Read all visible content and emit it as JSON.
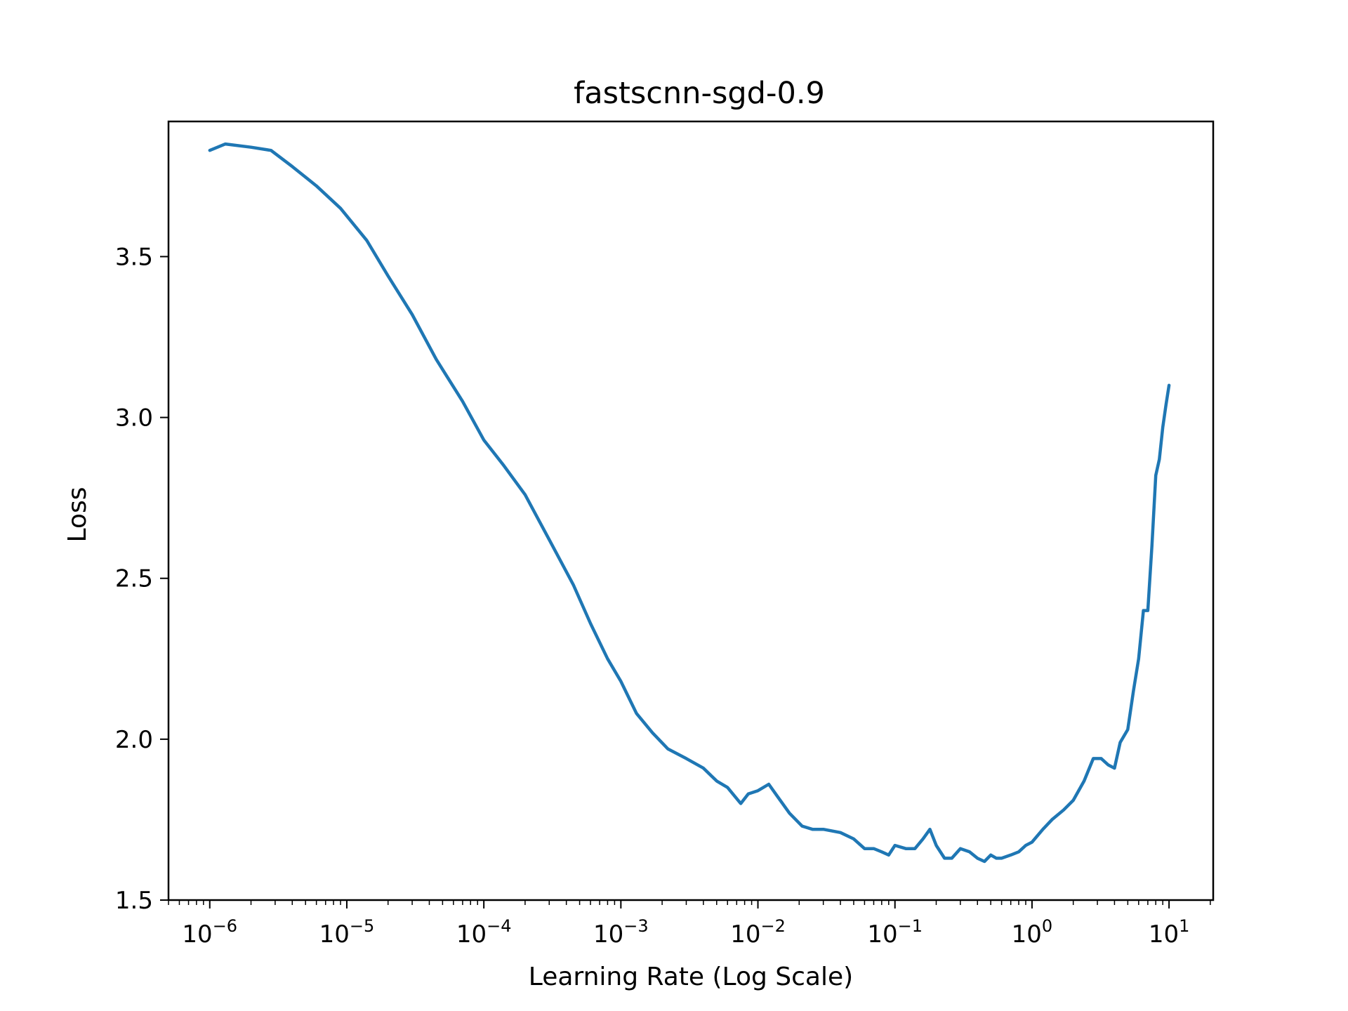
{
  "chart_data": {
    "type": "line",
    "title": "fastscnn-sgd-0.9",
    "xlabel": "Learning Rate (Log Scale)",
    "ylabel": "Loss",
    "x_scale": "log",
    "xlim": [
      5e-07,
      21
    ],
    "ylim": [
      1.5,
      3.92
    ],
    "x_major_ticks": [
      1e-06,
      1e-05,
      0.0001,
      0.001,
      0.01,
      0.1,
      1,
      10
    ],
    "x_tick_labels": [
      {
        "base": "10",
        "exp": "−6"
      },
      {
        "base": "10",
        "exp": "−5"
      },
      {
        "base": "10",
        "exp": "−4"
      },
      {
        "base": "10",
        "exp": "−3"
      },
      {
        "base": "10",
        "exp": "−2"
      },
      {
        "base": "10",
        "exp": "−1"
      },
      {
        "base": "10",
        "exp": "0"
      },
      {
        "base": "10",
        "exp": "1"
      }
    ],
    "y_ticks": [
      1.5,
      2.0,
      2.5,
      3.0,
      3.5
    ],
    "y_tick_labels": [
      "1.5",
      "2.0",
      "2.5",
      "3.0",
      "3.5"
    ],
    "grid": false,
    "line_color": "#1f77b4",
    "series": [
      {
        "x": [
          1e-06,
          1.3e-06,
          2e-06,
          2.8e-06,
          4e-06,
          6e-06,
          9e-06,
          1.4e-05,
          2e-05,
          3e-05,
          4.5e-05,
          7e-05,
          0.0001,
          0.00014,
          0.0002,
          0.0003,
          0.00045,
          0.0006,
          0.0008,
          0.001,
          0.0013,
          0.0017,
          0.0022,
          0.003,
          0.004,
          0.005,
          0.006,
          0.0075,
          0.0085,
          0.01,
          0.012,
          0.014,
          0.017,
          0.021,
          0.025,
          0.03,
          0.04,
          0.05,
          0.06,
          0.07,
          0.08,
          0.09,
          0.1,
          0.12,
          0.14,
          0.16,
          0.18,
          0.2,
          0.23,
          0.26,
          0.3,
          0.35,
          0.4,
          0.45,
          0.5,
          0.55,
          0.6,
          0.7,
          0.8,
          0.9,
          1.0,
          1.2,
          1.4,
          1.7,
          2.0,
          2.4,
          2.8,
          3.2,
          3.6,
          4.0,
          4.4,
          5.0,
          5.5,
          6.0,
          6.5,
          7.0,
          7.5,
          8.0,
          8.5,
          9.0,
          9.5,
          10.0
        ],
        "y": [
          3.83,
          3.85,
          3.84,
          3.83,
          3.78,
          3.72,
          3.65,
          3.55,
          3.44,
          3.32,
          3.18,
          3.05,
          2.93,
          2.85,
          2.76,
          2.62,
          2.48,
          2.36,
          2.25,
          2.18,
          2.08,
          2.02,
          1.97,
          1.94,
          1.91,
          1.87,
          1.85,
          1.8,
          1.83,
          1.84,
          1.86,
          1.82,
          1.77,
          1.73,
          1.72,
          1.72,
          1.71,
          1.69,
          1.66,
          1.66,
          1.65,
          1.64,
          1.67,
          1.66,
          1.66,
          1.69,
          1.72,
          1.67,
          1.63,
          1.63,
          1.66,
          1.65,
          1.63,
          1.62,
          1.64,
          1.63,
          1.63,
          1.64,
          1.65,
          1.67,
          1.68,
          1.72,
          1.75,
          1.78,
          1.81,
          1.87,
          1.94,
          1.94,
          1.92,
          1.91,
          1.99,
          2.03,
          2.15,
          2.25,
          2.4,
          2.4,
          2.6,
          2.82,
          2.87,
          2.97,
          3.04,
          3.1
        ]
      }
    ]
  }
}
